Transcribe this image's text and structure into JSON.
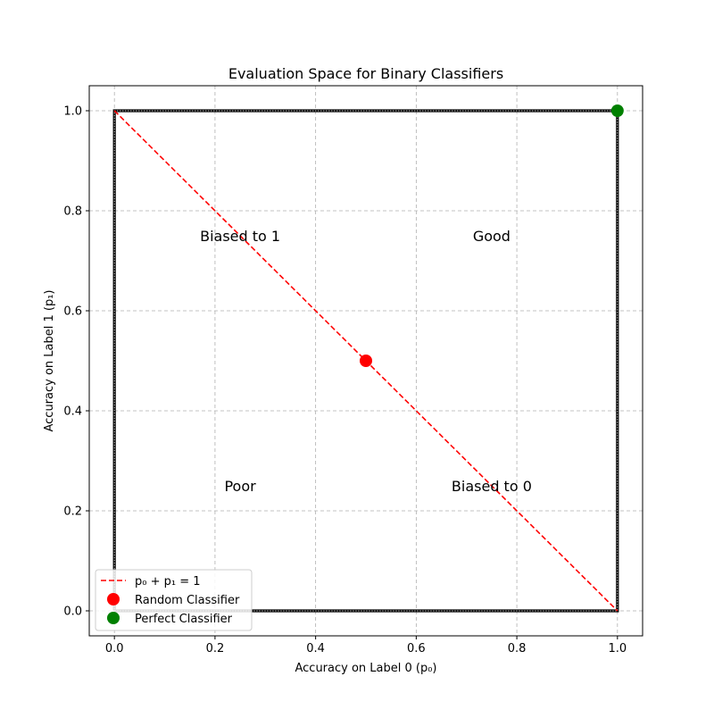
{
  "chart_data": {
    "type": "scatter",
    "title": "Evaluation Space for Binary Classifiers",
    "xlabel": "Accuracy on Label 0 (p₀)",
    "ylabel": "Accuracy on Label 1 (p₁)",
    "xlim": [
      -0.05,
      1.05
    ],
    "ylim": [
      -0.05,
      1.05
    ],
    "x_ticks": [
      0.0,
      0.2,
      0.4,
      0.6,
      0.8,
      1.0
    ],
    "y_ticks": [
      0.0,
      0.2,
      0.4,
      0.6,
      0.8,
      1.0
    ],
    "x_tick_labels": [
      "0.0",
      "0.2",
      "0.4",
      "0.6",
      "0.8",
      "1.0"
    ],
    "y_tick_labels": [
      "0.0",
      "0.2",
      "0.4",
      "0.6",
      "0.8",
      "1.0"
    ],
    "grid": true,
    "legend_position": "lower-left",
    "boundary_square": {
      "x": [
        0,
        1,
        1,
        0,
        0
      ],
      "y": [
        0,
        0,
        1,
        1,
        0
      ],
      "color": "#000000"
    },
    "lines": [
      {
        "name": "p₀ + p₁ = 1",
        "x": [
          0,
          1
        ],
        "y": [
          1,
          0
        ],
        "color": "#ff0000",
        "style": "dashed"
      }
    ],
    "points": [
      {
        "name": "Random Classifier",
        "x": 0.5,
        "y": 0.5,
        "color": "#ff0000"
      },
      {
        "name": "Perfect Classifier",
        "x": 1.0,
        "y": 1.0,
        "color": "#008000"
      }
    ],
    "annotations": [
      {
        "text": "Biased to 1",
        "x": 0.25,
        "y": 0.75
      },
      {
        "text": "Good",
        "x": 0.75,
        "y": 0.75
      },
      {
        "text": "Poor",
        "x": 0.25,
        "y": 0.25
      },
      {
        "text": "Biased to 0",
        "x": 0.75,
        "y": 0.25
      }
    ]
  }
}
